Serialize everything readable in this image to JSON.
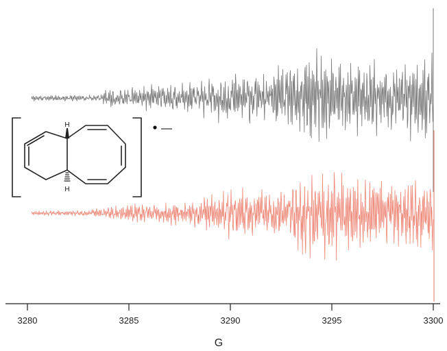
{
  "chart_data": {
    "type": "line",
    "title": "",
    "xlabel": "G",
    "ylabel": "",
    "xlim": [
      3280,
      3300
    ],
    "x_ticks": [
      "3280",
      "3285",
      "3290",
      "3295",
      "3300"
    ],
    "grid": false,
    "legend": "none",
    "series": [
      {
        "kind": "experimental EPR spectrum",
        "color": "#7a7a7a",
        "x_range": [
          3280,
          3300
        ],
        "baseline_noise": 0.04,
        "envelope": [
          {
            "x": 3280,
            "a": 0.05
          },
          {
            "x": 3283.5,
            "a": 0.06
          },
          {
            "x": 3284,
            "a": 0.15
          },
          {
            "x": 3286,
            "a": 0.22
          },
          {
            "x": 3288.5,
            "a": 0.3
          },
          {
            "x": 3290,
            "a": 0.45
          },
          {
            "x": 3292,
            "a": 0.45
          },
          {
            "x": 3294,
            "a": 0.8
          },
          {
            "x": 3296,
            "a": 0.7
          },
          {
            "x": 3298,
            "a": 0.6
          },
          {
            "x": 3299.5,
            "a": 0.8
          },
          {
            "x": 3300,
            "a": 1.0
          }
        ]
      },
      {
        "kind": "simulated EPR spectrum",
        "color": "#ee8a7a",
        "x_range": [
          3280,
          3300
        ],
        "baseline_noise": 0.03,
        "envelope": [
          {
            "x": 3280,
            "a": 0.04
          },
          {
            "x": 3283,
            "a": 0.05
          },
          {
            "x": 3284,
            "a": 0.12
          },
          {
            "x": 3286,
            "a": 0.18
          },
          {
            "x": 3288,
            "a": 0.22
          },
          {
            "x": 3290,
            "a": 0.45
          },
          {
            "x": 3292,
            "a": 0.4
          },
          {
            "x": 3294,
            "a": 0.85
          },
          {
            "x": 3296,
            "a": 0.75
          },
          {
            "x": 3298,
            "a": 0.6
          },
          {
            "x": 3299.5,
            "a": 0.65
          },
          {
            "x": 3300,
            "a": 1.0
          }
        ]
      }
    ]
  },
  "structure": {
    "h_label_top": "H",
    "h_label_bottom": "H",
    "charge": "—"
  },
  "colors": {
    "axis": "#222222",
    "structure": "#222222"
  }
}
